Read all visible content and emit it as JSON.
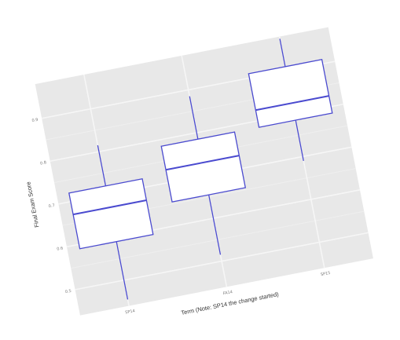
{
  "chart_data": {
    "type": "boxplot",
    "title": "",
    "xlabel": "Term (Note: SP14 the change started)",
    "ylabel": "Final Exam Score",
    "categories": [
      "SP14",
      "FA14",
      "SP15"
    ],
    "yticks": [
      0.5,
      0.6,
      0.7,
      0.8,
      0.9
    ],
    "ylim": [
      0.44,
      0.98
    ],
    "grid": true,
    "boxes": [
      {
        "category": "SP14",
        "whisker_low": 0.455,
        "q1": 0.59,
        "median": 0.67,
        "q3": 0.72,
        "whisker_high": 0.815
      },
      {
        "category": "FA14",
        "whisker_low": 0.515,
        "q1": 0.655,
        "median": 0.73,
        "q3": 0.785,
        "whisker_high": 0.885
      },
      {
        "category": "SP15",
        "whisker_low": 0.69,
        "q1": 0.785,
        "median": 0.825,
        "q3": 0.91,
        "whisker_high": 0.975
      }
    ],
    "colors": {
      "panel": "#e8e8e8",
      "grid_major": "#f6f6f6",
      "grid_minor": "#efefef",
      "box_line": "#4a4acf",
      "box_fill": "#ffffff",
      "tick_text": "#7a7a7a",
      "title_text": "#333333"
    }
  }
}
